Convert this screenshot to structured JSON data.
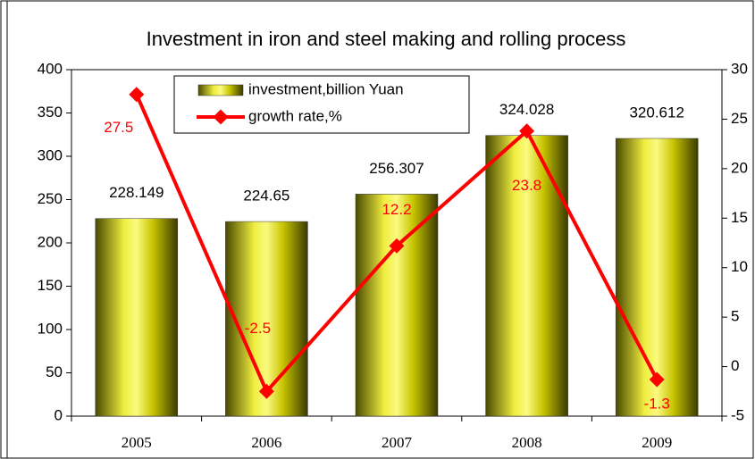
{
  "chart_data": {
    "type": "bar",
    "title": "Investment in iron and steel making and rolling process",
    "categories": [
      "2005",
      "2006",
      "2007",
      "2008",
      "2009"
    ],
    "series": [
      {
        "name": "investment,billion Yuan",
        "type": "bar",
        "color": "#c8c400",
        "values": [
          228.149,
          224.65,
          256.307,
          324.028,
          320.612
        ]
      },
      {
        "name": "growth rate,%",
        "type": "line",
        "axis": "y2",
        "color": "#ff0000",
        "values": [
          27.5,
          -2.5,
          12.2,
          23.8,
          -1.3
        ]
      }
    ],
    "ylim": [
      0,
      400
    ],
    "yticks": [
      0,
      50,
      100,
      150,
      200,
      250,
      300,
      350,
      400
    ],
    "y2lim": [
      -5,
      30
    ],
    "y2ticks": [
      -5,
      0,
      5,
      10,
      15,
      20,
      25,
      30
    ],
    "legend": "top-left"
  }
}
